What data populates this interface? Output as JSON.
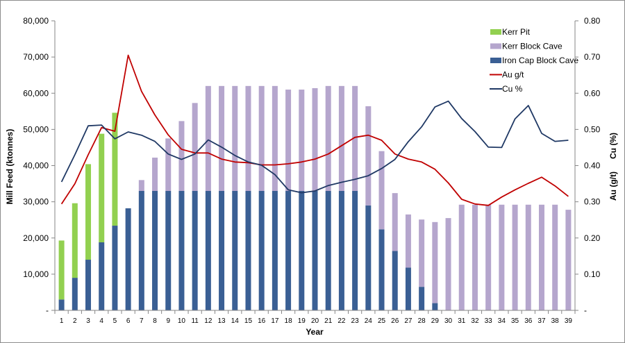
{
  "chart_data": {
    "type": "bar",
    "stacked": true,
    "xlabel": "Year",
    "ylabel_left": "Mill Feed  (ktonnes)",
    "ylabel_right_1": "Au (g/t)",
    "ylabel_right_2": "Cu (%)",
    "ylim_left": [
      0,
      80000
    ],
    "ylim_right": [
      0,
      0.8
    ],
    "yticks_left": [
      "-",
      "10,000",
      "20,000",
      "30,000",
      "40,000",
      "50,000",
      "60,000",
      "70,000",
      "80,000"
    ],
    "yticks_right": [
      "-",
      "0.10",
      "0.20",
      "0.30",
      "0.40",
      "0.50",
      "0.60",
      "0.70",
      "0.80"
    ],
    "grid": false,
    "legend_position": "top-right",
    "categories": [
      "1",
      "2",
      "3",
      "4",
      "5",
      "6",
      "7",
      "8",
      "9",
      "10",
      "11",
      "12",
      "13",
      "14",
      "15",
      "16",
      "17",
      "18",
      "19",
      "20",
      "21",
      "22",
      "23",
      "24",
      "25",
      "26",
      "27",
      "28",
      "29",
      "30",
      "31",
      "32",
      "33",
      "34",
      "35",
      "36",
      "37",
      "38",
      "39"
    ],
    "bar_series": [
      {
        "name": "Iron Cap Block Cave",
        "color": "#3a5f94",
        "values": [
          3000,
          9000,
          14000,
          18800,
          23400,
          28200,
          33000,
          33000,
          33000,
          33000,
          33000,
          33000,
          33000,
          33000,
          33000,
          33000,
          33000,
          33000,
          33000,
          33000,
          33000,
          33000,
          33000,
          29000,
          22400,
          16400,
          11800,
          6500,
          2000,
          0,
          0,
          0,
          0,
          0,
          0,
          0,
          0,
          0,
          0
        ]
      },
      {
        "name": "Kerr Block Cave",
        "color": "#b5a6cd",
        "values": [
          0,
          0,
          0,
          0,
          0,
          0,
          3000,
          9200,
          14500,
          19300,
          24300,
          29000,
          29000,
          29000,
          29000,
          29000,
          29000,
          28000,
          28000,
          28400,
          29000,
          29000,
          29000,
          27400,
          21600,
          16000,
          14700,
          18600,
          22400,
          25500,
          29200,
          29200,
          29200,
          29200,
          29200,
          29200,
          29200,
          29200,
          27800
        ]
      },
      {
        "name": "Kerr Pit",
        "color": "#92d050",
        "values": [
          16300,
          20600,
          26400,
          30000,
          31200,
          0,
          0,
          0,
          0,
          0,
          0,
          0,
          0,
          0,
          0,
          0,
          0,
          0,
          0,
          0,
          0,
          0,
          0,
          0,
          0,
          0,
          0,
          0,
          0,
          0,
          0,
          0,
          0,
          0,
          0,
          0,
          0,
          0,
          0
        ]
      }
    ],
    "line_series": [
      {
        "name": "Au g/t",
        "color": "#c00000",
        "axis": "right",
        "values": [
          0.294,
          0.35,
          0.43,
          0.505,
          0.495,
          0.705,
          0.605,
          0.54,
          0.485,
          0.445,
          0.435,
          0.435,
          0.418,
          0.41,
          0.408,
          0.402,
          0.402,
          0.405,
          0.41,
          0.418,
          0.432,
          0.455,
          0.478,
          0.484,
          0.47,
          0.432,
          0.418,
          0.41,
          0.39,
          0.352,
          0.307,
          0.294,
          0.29,
          0.313,
          0.333,
          0.351,
          0.368,
          0.344,
          0.315
        ]
      },
      {
        "name": "Cu %",
        "color": "#1f3864",
        "axis": "right",
        "values": [
          0.355,
          0.43,
          0.51,
          0.512,
          0.474,
          0.493,
          0.484,
          0.467,
          0.432,
          0.417,
          0.432,
          0.471,
          0.451,
          0.428,
          0.41,
          0.401,
          0.375,
          0.333,
          0.325,
          0.33,
          0.345,
          0.354,
          0.362,
          0.372,
          0.392,
          0.417,
          0.466,
          0.507,
          0.562,
          0.578,
          0.53,
          0.494,
          0.451,
          0.45,
          0.529,
          0.566,
          0.489,
          0.467,
          0.47
        ]
      }
    ],
    "legend": [
      {
        "label": "Kerr Pit",
        "kind": "bar",
        "color": "#92d050"
      },
      {
        "label": "Kerr Block Cave",
        "kind": "bar",
        "color": "#b5a6cd"
      },
      {
        "label": "Iron Cap Block Cave",
        "kind": "bar",
        "color": "#3a5f94"
      },
      {
        "label": "Au g/t",
        "kind": "line",
        "color": "#c00000"
      },
      {
        "label": "Cu %",
        "kind": "line",
        "color": "#1f3864"
      }
    ]
  }
}
